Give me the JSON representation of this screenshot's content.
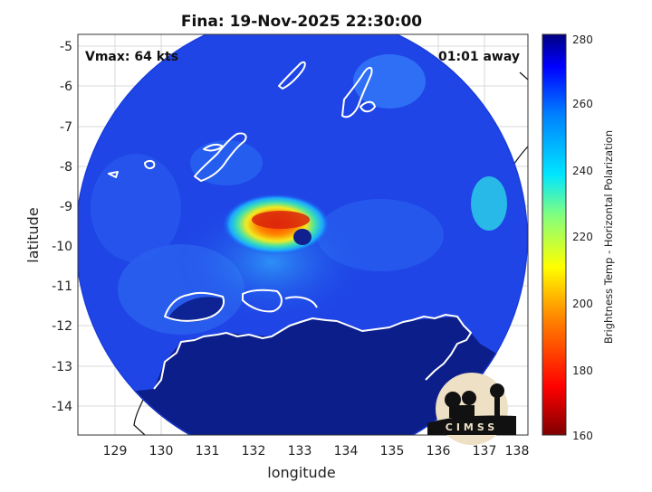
{
  "title": "Fina: 19-Nov-2025 22:30:00",
  "vmax_label": "Vmax: 64 kts",
  "time_away_label": "01:01 away",
  "xlabel": "longitude",
  "ylabel": "latitude",
  "x_ticks": [
    "129",
    "130",
    "131",
    "132",
    "133",
    "134",
    "135",
    "136",
    "137",
    "138"
  ],
  "y_ticks": [
    "-5",
    "-6",
    "-7",
    "-8",
    "-9",
    "-10",
    "-11",
    "-12",
    "-13",
    "-14"
  ],
  "colorbar": {
    "label": "Brightness Temp - Horizontal Polarization",
    "ticks": [
      "280",
      "260",
      "240",
      "220",
      "200",
      "180",
      "160"
    ],
    "range": [
      160,
      280
    ]
  },
  "logo_text": "CIMSS",
  "colors": {
    "ocean_background": "#1f45e6",
    "land": "#0b1e8a",
    "coastline": "#ffffff",
    "storm_core": "#e23a0f"
  }
}
